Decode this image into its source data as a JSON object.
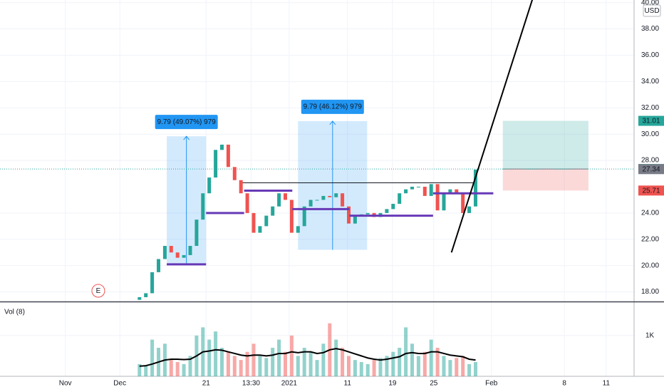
{
  "chart_data": {
    "type": "candlestick",
    "currency": "USD",
    "x": [
      22,
      23,
      24,
      25,
      26,
      27,
      28,
      29,
      30,
      31,
      32,
      33,
      34,
      35,
      36,
      37,
      38,
      39,
      40,
      41,
      42,
      43,
      44,
      45,
      46,
      47,
      48,
      49,
      50,
      51,
      52,
      53,
      54,
      55,
      56,
      57,
      58,
      59,
      60,
      61,
      62,
      63,
      64,
      65,
      66,
      67,
      68,
      69,
      70,
      71,
      72,
      73,
      74,
      75
    ],
    "open": [
      17.4,
      17.6,
      17.9,
      19.5,
      20.5,
      21.5,
      21.0,
      20.6,
      20.8,
      21.5,
      23.5,
      25.5,
      26.7,
      28.8,
      29.2,
      27.5,
      26.5,
      25.5,
      24.0,
      22.5,
      23.0,
      23.8,
      24.5,
      25.5,
      25.0,
      22.5,
      23.0,
      24.5,
      25.0,
      25.0,
      25.3,
      25.2,
      25.5,
      24.5,
      23.2,
      23.8,
      23.9,
      24.0,
      23.7,
      24.0,
      24.3,
      24.7,
      25.5,
      25.8,
      26.0,
      26.0,
      25.3,
      26.2,
      24.2,
      25.5,
      25.8,
      25.5,
      24.0,
      24.5
    ],
    "close": [
      17.6,
      17.9,
      19.5,
      20.5,
      21.5,
      21.0,
      20.6,
      20.8,
      21.5,
      23.5,
      25.5,
      26.7,
      28.8,
      29.2,
      27.5,
      26.5,
      25.5,
      24.0,
      22.5,
      23.0,
      23.8,
      24.5,
      25.5,
      25.0,
      22.5,
      23.0,
      24.5,
      25.0,
      25.0,
      25.3,
      25.2,
      25.5,
      24.5,
      23.2,
      23.8,
      23.9,
      24.0,
      23.7,
      24.0,
      24.3,
      24.7,
      25.5,
      25.8,
      26.0,
      26.0,
      25.3,
      26.2,
      24.2,
      25.5,
      25.8,
      25.5,
      24.0,
      24.5,
      27.3
    ],
    "up_color": "#26a69a",
    "down_color": "#ef5350",
    "xlim": [
      0,
      100
    ],
    "xticks": [
      {
        "value": 10.3,
        "label": "Nov"
      },
      {
        "value": 18.9,
        "label": "Dec"
      },
      {
        "value": 32.5,
        "label": "21"
      },
      {
        "value": 39.6,
        "label": "13:30"
      },
      {
        "value": 45.6,
        "label": "2021"
      },
      {
        "value": 54.8,
        "label": "11"
      },
      {
        "value": 61.9,
        "label": "19"
      },
      {
        "value": 68.4,
        "label": "25"
      },
      {
        "value": 77.5,
        "label": "Feb"
      },
      {
        "value": 89,
        "label": "8"
      },
      {
        "value": 95.6,
        "label": "11"
      }
    ],
    "ylim": [
      17.3,
      40.2
    ],
    "yticks": [
      {
        "value": 18,
        "label": "18.00"
      },
      {
        "value": 20,
        "label": "20.00"
      },
      {
        "value": 22,
        "label": "22.00"
      },
      {
        "value": 24,
        "label": "24.00"
      },
      {
        "value": 28,
        "label": "28.00"
      },
      {
        "value": 30,
        "label": "30.00"
      },
      {
        "value": 32,
        "label": "32.00"
      },
      {
        "value": 34,
        "label": "34.00"
      },
      {
        "value": 36,
        "label": "36.00"
      },
      {
        "value": 38,
        "label": "38.00"
      },
      {
        "value": 40,
        "label": "40.00"
      }
    ],
    "grid": true,
    "volume": {
      "name": "Vol (8)",
      "values": [
        300,
        250,
        900,
        700,
        800,
        400,
        350,
        300,
        500,
        1000,
        1200,
        900,
        1100,
        700,
        600,
        500,
        400,
        600,
        800,
        500,
        450,
        700,
        900,
        600,
        1000,
        500,
        700,
        600,
        400,
        800,
        1300,
        900,
        700,
        500,
        400,
        350,
        300,
        400,
        450,
        500,
        600,
        700,
        1200,
        800,
        500,
        600,
        900,
        700,
        500,
        400,
        450,
        500,
        300,
        350
      ],
      "ma": [
        250,
        260,
        300,
        350,
        400,
        420,
        420,
        410,
        420,
        500,
        600,
        620,
        650,
        640,
        600,
        560,
        520,
        500,
        520,
        520,
        500,
        520,
        560,
        560,
        600,
        580,
        600,
        600,
        560,
        580,
        650,
        680,
        650,
        600,
        550,
        500,
        450,
        420,
        400,
        420,
        450,
        480,
        560,
        580,
        560,
        560,
        600,
        600,
        560,
        520,
        500,
        480,
        420,
        400
      ],
      "ma_color": "#000000",
      "ylim": [
        0,
        1800
      ],
      "yticks": [
        {
          "value": 1000,
          "label": "1K"
        }
      ]
    },
    "measures": [
      {
        "label": "9.79 (49.07%) 979",
        "x": [
          26.3,
          32.5
        ],
        "y": [
          20.05,
          29.84
        ]
      },
      {
        "label": "9.79 (46.12%) 979",
        "x": [
          47,
          57.9
        ],
        "y": [
          21.2,
          30.99
        ]
      }
    ],
    "levels": [
      {
        "x": [
          26.3,
          32.5
        ],
        "y": 20.1
      },
      {
        "x": [
          32.5,
          38.5
        ],
        "y": 24.0
      },
      {
        "x": [
          38.5,
          46.1
        ],
        "y": 25.7
      },
      {
        "x": [
          46.1,
          55.1
        ],
        "y": 24.3
      },
      {
        "x": [
          55.1,
          68.3
        ],
        "y": 23.8
      },
      {
        "x": [
          68.3,
          77.8
        ],
        "y": 25.5
      }
    ],
    "level_color": "#673ab7",
    "resistance": {
      "x": [
        37.8,
        74.7
      ],
      "y": 26.3
    },
    "trend": {
      "x": [
        71.2,
        84
      ],
      "y": [
        21,
        40.3
      ]
    },
    "position": {
      "x": [
        79.3,
        92.8
      ],
      "target": 31.01,
      "entry": 27.35,
      "stop": 25.71
    },
    "price_tags": [
      {
        "value": 31.01,
        "color": "#26a69a"
      },
      {
        "value": 27.35,
        "color": "#26a69a"
      },
      {
        "value": 27.34,
        "color": "#787b86"
      },
      {
        "value": 25.71,
        "color": "#ef5350"
      }
    ],
    "events": [
      {
        "label": "E",
        "x": 15.5
      }
    ]
  }
}
